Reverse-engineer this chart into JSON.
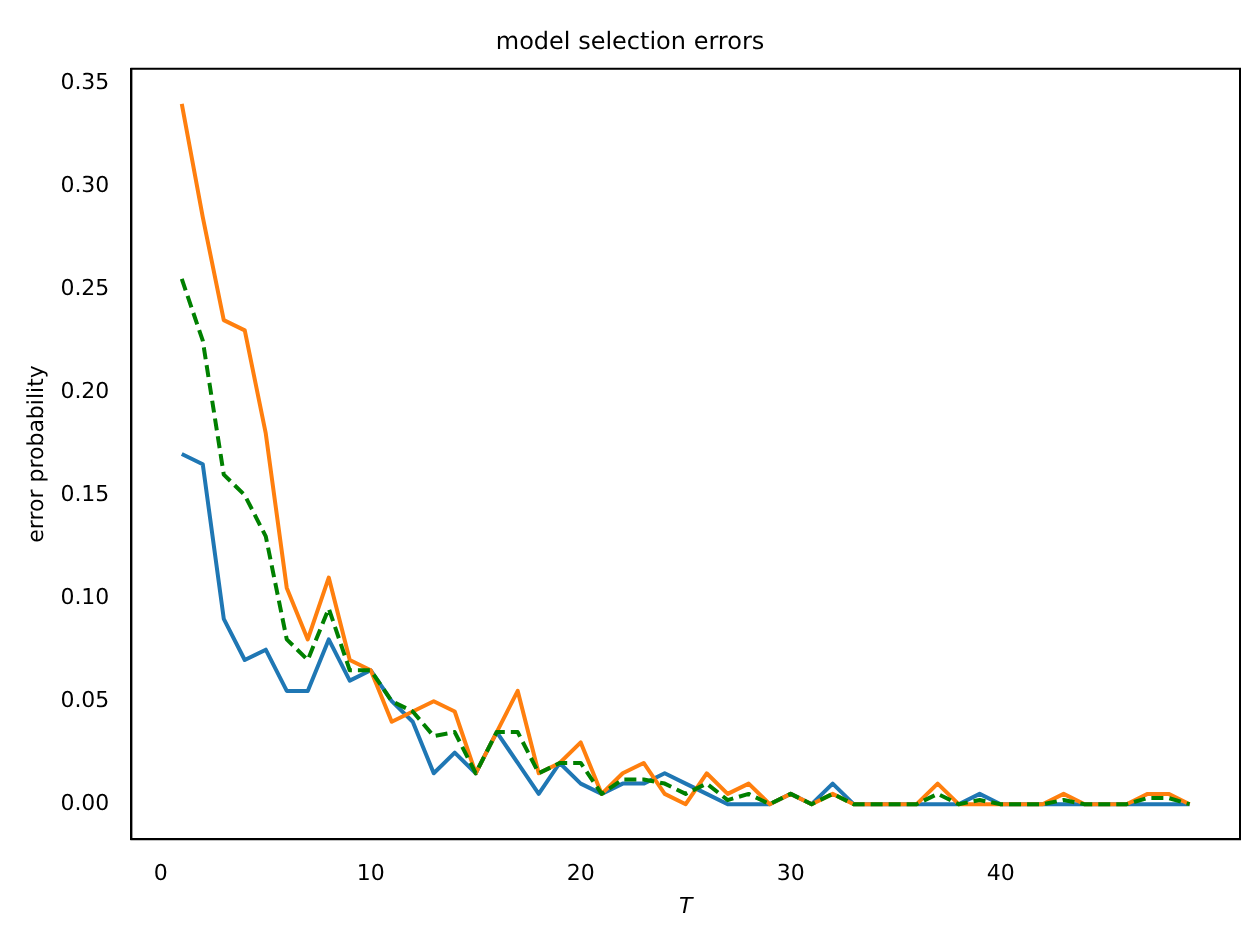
{
  "chart_data": {
    "type": "line",
    "title": "model selection errors",
    "xlabel": "T",
    "ylabel": "error probability",
    "x": [
      1,
      2,
      3,
      4,
      5,
      6,
      7,
      8,
      9,
      10,
      11,
      12,
      13,
      14,
      15,
      16,
      17,
      18,
      19,
      20,
      21,
      22,
      23,
      24,
      25,
      26,
      27,
      28,
      29,
      30,
      31,
      32,
      33,
      34,
      35,
      36,
      37,
      38,
      39,
      40,
      41,
      42,
      43,
      44,
      45,
      46,
      47,
      48,
      49
    ],
    "series": [
      {
        "color": "#1f77b4",
        "line_style": "solid",
        "values": [
          0.17,
          0.165,
          0.09,
          0.07,
          0.075,
          0.055,
          0.055,
          0.08,
          0.06,
          0.065,
          0.05,
          0.04,
          0.015,
          0.025,
          0.015,
          0.035,
          0.02,
          0.005,
          0.02,
          0.01,
          0.005,
          0.01,
          0.01,
          0.015,
          0.01,
          0.005,
          0,
          0,
          0,
          0.005,
          0,
          0.01,
          0,
          0,
          0,
          0,
          0,
          0,
          0.005,
          0,
          0,
          0,
          0,
          0,
          0,
          0,
          0,
          0,
          0
        ]
      },
      {
        "color": "#ff7f0e",
        "line_style": "solid",
        "values": [
          0.34,
          0.285,
          0.235,
          0.23,
          0.18,
          0.105,
          0.08,
          0.11,
          0.07,
          0.065,
          0.04,
          0.045,
          0.05,
          0.045,
          0.015,
          0.035,
          0.055,
          0.015,
          0.02,
          0.03,
          0.005,
          0.015,
          0.02,
          0.005,
          0,
          0.015,
          0.005,
          0.01,
          0,
          0.005,
          0,
          0.005,
          0,
          0,
          0,
          0,
          0.01,
          0,
          0,
          0,
          0,
          0,
          0.005,
          0,
          0,
          0,
          0.005,
          0.005,
          0
        ]
      },
      {
        "color": "#008000",
        "line_style": "dashed",
        "values": [
          0.255,
          0.225,
          0.16,
          0.15,
          0.13,
          0.08,
          0.07,
          0.095,
          0.065,
          0.065,
          0.05,
          0.045,
          0.033,
          0.035,
          0.015,
          0.035,
          0.035,
          0.015,
          0.02,
          0.02,
          0.005,
          0.012,
          0.012,
          0.01,
          0.005,
          0.01,
          0.002,
          0.005,
          0,
          0.005,
          0,
          0.005,
          0,
          0,
          0,
          0,
          0.005,
          0,
          0.002,
          0,
          0,
          0,
          0.002,
          0,
          0,
          0,
          0.003,
          0.003,
          0
        ]
      }
    ],
    "xlim": [
      -1.4,
      51.4
    ],
    "xticks": [
      0,
      10,
      20,
      30,
      40
    ],
    "ylim": [
      -0.017,
      0.357
    ],
    "yticks": [
      {
        "value": 0,
        "label": "0.00"
      },
      {
        "value": 0.05,
        "label": "0.05"
      },
      {
        "value": 0.1,
        "label": "0.10"
      },
      {
        "value": 0.15,
        "label": "0.15"
      },
      {
        "value": 0.2,
        "label": "0.20"
      },
      {
        "value": 0.25,
        "label": "0.25"
      },
      {
        "value": 0.3,
        "label": "0.30"
      },
      {
        "value": 0.35,
        "label": "0.35"
      }
    ],
    "grid": false,
    "legend": false
  }
}
